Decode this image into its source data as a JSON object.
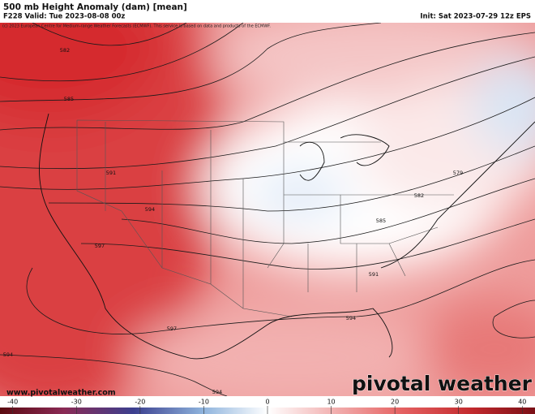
{
  "header": {
    "title": "500 mb Height Anomaly (dam) [mean]",
    "valid": "F228 Valid: Tue 2023-08-08 00z",
    "init": "Init: Sat 2023-07-29 12z EPS",
    "copyright": "(c) 2023 European Centre for Medium-range Weather Forecasts (ECMWF). This service is based on data and products of the ECMWF."
  },
  "map": {
    "contour_labels": [
      582,
      585,
      591,
      594,
      597,
      597,
      594,
      594,
      579,
      582,
      585,
      591,
      594
    ]
  },
  "footer": {
    "website": "www.pivotalweather.com",
    "brand": "pivotal weather"
  },
  "colorbar": {
    "lim": [
      -42,
      42
    ],
    "ticks": [
      -40,
      -30,
      -20,
      -10,
      0,
      10,
      20,
      30,
      40
    ]
  }
}
